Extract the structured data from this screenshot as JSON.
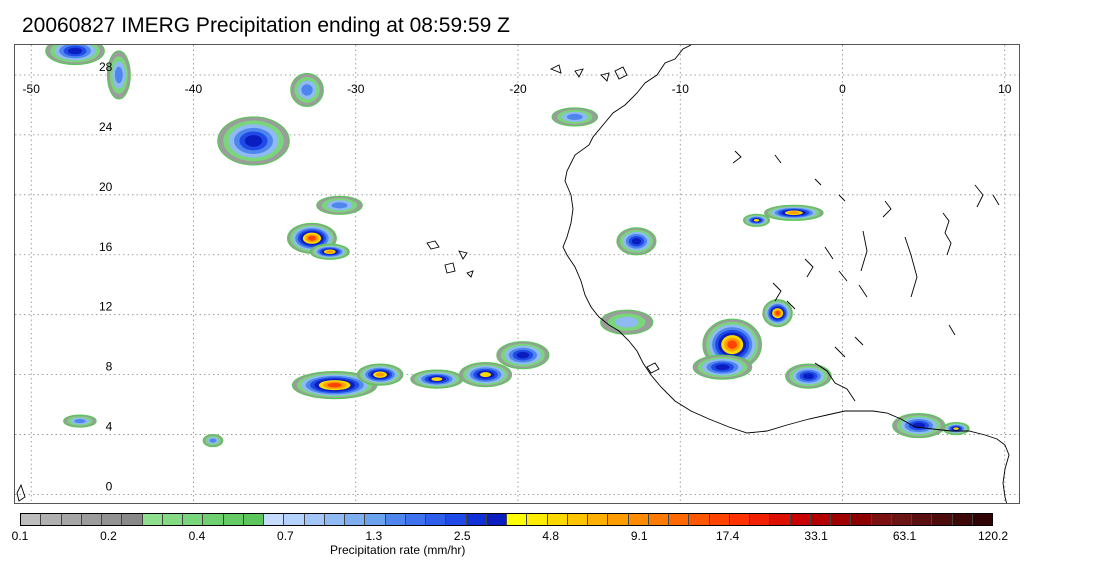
{
  "title": "20060827 IMERG Precipitation ending at 08:59:59 Z",
  "map": {
    "lon_range": [
      -51,
      11
    ],
    "lat_range": [
      -0.7,
      30
    ],
    "lon_ticks": [
      "-50",
      "-40",
      "-30",
      "-20",
      "-10",
      "0",
      "10"
    ],
    "lat_ticks": [
      "0",
      "4",
      "8",
      "12",
      "16",
      "20",
      "24",
      "28"
    ],
    "gridlines": "dotted",
    "coastline_color": "#000000"
  },
  "colorbar": {
    "title": "Precipitation rate (mm/hr)",
    "labels": [
      "0.1",
      "0.2",
      "0.4",
      "0.7",
      "1.3",
      "2.5",
      "4.8",
      "9.1",
      "17.4",
      "33.1",
      "63.1",
      "120.2"
    ],
    "colors": [
      "#bdbdbd",
      "#b0b0b0",
      "#a6a6a6",
      "#9c9c9c",
      "#929292",
      "#888888",
      "#8ee08e",
      "#84db84",
      "#7ad67a",
      "#70d070",
      "#66cb66",
      "#5cc65c",
      "#c6dcff",
      "#b4d2fb",
      "#a2c6f7",
      "#8fbaf3",
      "#7daef0",
      "#6ba2ee",
      "#4f86ee",
      "#3f72ec",
      "#2f5eea",
      "#1f4ae8",
      "#1030d8",
      "#0a1ec0",
      "#ffff00",
      "#ffec00",
      "#ffd800",
      "#ffc400",
      "#ffb000",
      "#ff9c00",
      "#ff8c00",
      "#ff7a00",
      "#ff6800",
      "#ff5600",
      "#ff4400",
      "#ff3200",
      "#f02000",
      "#dd1000",
      "#c80000",
      "#b40000",
      "#a00000",
      "#8c0000",
      "#7a1010",
      "#6a1414",
      "#5a1010",
      "#4c0c0c",
      "#3e0808",
      "#300404"
    ]
  },
  "chart_data": {
    "type": "heatmap",
    "title": "20060827 IMERG Precipitation ending at 08:59:59 Z",
    "xlabel": "",
    "ylabel": "",
    "xlim": [
      -51,
      11
    ],
    "ylim": [
      -0.7,
      30
    ],
    "colorbar_label": "Precipitation rate (mm/hr)",
    "levels": [
      0.1,
      0.2,
      0.4,
      0.7,
      1.3,
      2.5,
      4.8,
      9.1,
      17.4,
      33.1,
      63.1,
      120.2
    ],
    "rain_cells": [
      {
        "lon": -31.3,
        "lat": 7.3,
        "rx": 2.6,
        "ry": 0.9,
        "peak": 17.4
      },
      {
        "lon": -28.5,
        "lat": 8.0,
        "rx": 1.4,
        "ry": 0.7,
        "peak": 9.1
      },
      {
        "lon": -25.0,
        "lat": 7.7,
        "rx": 1.6,
        "ry": 0.6,
        "peak": 4.8
      },
      {
        "lon": -22.0,
        "lat": 8.0,
        "rx": 1.6,
        "ry": 0.8,
        "peak": 4.8
      },
      {
        "lon": -19.7,
        "lat": 9.3,
        "rx": 1.6,
        "ry": 0.9,
        "peak": 2.5
      },
      {
        "lon": -32.7,
        "lat": 17.1,
        "rx": 1.5,
        "ry": 1.0,
        "peak": 17.4
      },
      {
        "lon": -31.6,
        "lat": 16.2,
        "rx": 1.2,
        "ry": 0.5,
        "peak": 9.1
      },
      {
        "lon": -6.8,
        "lat": 10.0,
        "rx": 1.8,
        "ry": 1.7,
        "peak": 17.4
      },
      {
        "lon": -7.4,
        "lat": 8.5,
        "rx": 1.8,
        "ry": 0.8,
        "peak": 2.5
      },
      {
        "lon": -4.0,
        "lat": 12.1,
        "rx": 0.9,
        "ry": 0.9,
        "peak": 17.4
      },
      {
        "lon": -3.0,
        "lat": 18.8,
        "rx": 1.8,
        "ry": 0.5,
        "peak": 9.1
      },
      {
        "lon": -5.3,
        "lat": 18.3,
        "rx": 0.8,
        "ry": 0.4,
        "peak": 4.8
      },
      {
        "lon": -12.7,
        "lat": 16.9,
        "rx": 1.2,
        "ry": 0.9,
        "peak": 2.5
      },
      {
        "lon": 4.7,
        "lat": 4.6,
        "rx": 1.6,
        "ry": 0.8,
        "peak": 2.5
      },
      {
        "lon": 7.0,
        "lat": 4.4,
        "rx": 0.8,
        "ry": 0.4,
        "peak": 4.8
      },
      {
        "lon": -36.3,
        "lat": 23.6,
        "rx": 2.2,
        "ry": 1.6,
        "peak": 2.5
      },
      {
        "lon": -47.3,
        "lat": 29.6,
        "rx": 1.8,
        "ry": 0.9,
        "peak": 2.5
      },
      {
        "lon": -44.6,
        "lat": 28.0,
        "rx": 0.7,
        "ry": 1.6,
        "peak": 0.7
      },
      {
        "lon": -33.0,
        "lat": 27.0,
        "rx": 1.0,
        "ry": 1.1,
        "peak": 0.7
      },
      {
        "lon": -16.5,
        "lat": 25.2,
        "rx": 1.4,
        "ry": 0.6,
        "peak": 0.7
      },
      {
        "lon": -47.0,
        "lat": 4.9,
        "rx": 1.0,
        "ry": 0.4,
        "peak": 0.7
      },
      {
        "lon": -2.1,
        "lat": 7.9,
        "rx": 1.4,
        "ry": 0.8,
        "peak": 2.5
      },
      {
        "lon": -31.0,
        "lat": 19.3,
        "rx": 1.4,
        "ry": 0.6,
        "peak": 0.7
      },
      {
        "lon": -13.3,
        "lat": 11.5,
        "rx": 1.6,
        "ry": 0.8,
        "peak": 0.4
      },
      {
        "lon": -38.8,
        "lat": 3.6,
        "rx": 0.6,
        "ry": 0.4,
        "peak": 0.7
      }
    ]
  }
}
